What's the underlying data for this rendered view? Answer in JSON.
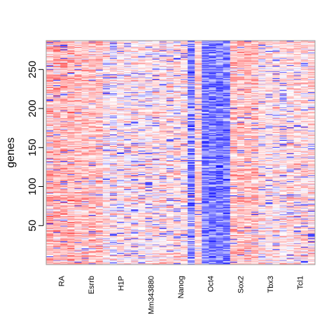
{
  "chart_data": {
    "type": "heatmap",
    "title": "",
    "xlabel": "",
    "ylabel": "genes",
    "ylim": [
      0,
      287
    ],
    "row_count": 287,
    "y_ticks": [
      50,
      100,
      150,
      200,
      250
    ],
    "grid": false,
    "legend": "none",
    "value_range": [
      -1,
      1
    ],
    "colors": {
      "low": "#0000ff",
      "mid": "#ffffff",
      "high": "#ff0000",
      "frame": "#999999"
    },
    "columns": [
      {
        "label": "RA",
        "rank": 0,
        "units": 10,
        "mean": 0.3,
        "spread": 0.18,
        "blue_rate": 0.06
      },
      {
        "label": "Esrrb",
        "rank": 1,
        "units": 10,
        "mean": 0.25,
        "spread": 0.16,
        "blue_rate": 0.04
      },
      {
        "label": "H1P",
        "rank": 2,
        "units": 10,
        "mean": 0.09,
        "spread": 0.17,
        "blue_rate": 0.12
      },
      {
        "label": "Mm343880",
        "rank": 3,
        "units": 10,
        "mean": 0.1,
        "spread": 0.17,
        "blue_rate": 0.1
      },
      {
        "label": "Nanog",
        "rank": 4,
        "units": 10,
        "mean": 0.14,
        "spread": 0.16,
        "blue_rate": 0.12
      },
      {
        "label": "",
        "rank": 4,
        "units": 2.5,
        "mean": -0.35,
        "spread": 0.35,
        "blue_rate": 0.5
      },
      {
        "label": "",
        "rank": 4,
        "units": 2.5,
        "mean": 0.2,
        "spread": 0.1,
        "blue_rate": 0.05
      },
      {
        "label": "Oct4",
        "rank": 5,
        "units": 10,
        "mean": -0.5,
        "spread": 0.22,
        "blue_rate": 0.92
      },
      {
        "label": "Sox2",
        "rank": 6,
        "units": 10,
        "mean": 0.26,
        "spread": 0.17,
        "blue_rate": 0.05
      },
      {
        "label": "Tbx3",
        "rank": 7,
        "units": 10,
        "mean": 0.12,
        "spread": 0.16,
        "blue_rate": 0.1
      },
      {
        "label": "Tcl1",
        "rank": 8,
        "units": 10,
        "mean": 0.15,
        "spread": 0.16,
        "blue_rate": 0.08
      }
    ]
  }
}
